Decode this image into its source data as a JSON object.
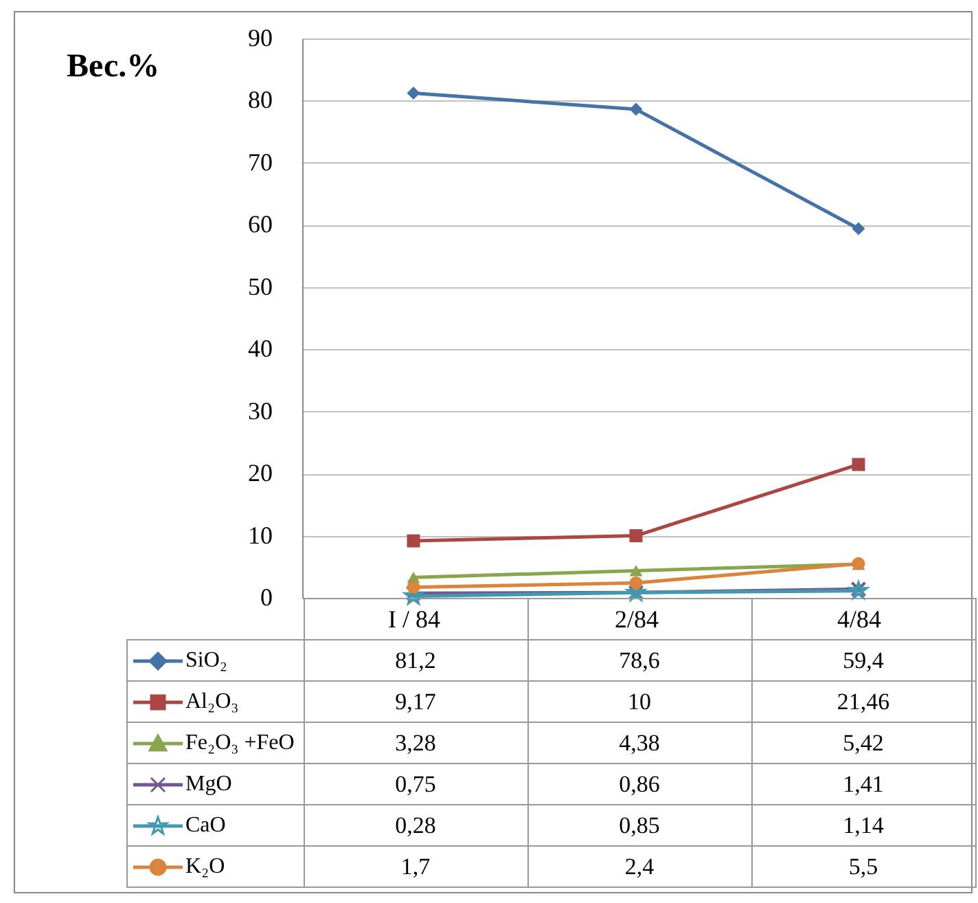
{
  "chart_data": {
    "type": "line",
    "ylabel": "Вес.%",
    "categories": [
      "I / 84",
      "2/84",
      "4/84"
    ],
    "ylim": [
      0,
      90
    ],
    "yticks": [
      0,
      10,
      20,
      30,
      40,
      50,
      60,
      70,
      80,
      90
    ],
    "grid": "y",
    "legend": "bottom",
    "line_style": "solid",
    "series": [
      {
        "name": "SiO₂",
        "color": "#4572a7",
        "marker": "diamond",
        "values": [
          81.2,
          78.6,
          59.4
        ],
        "value_labels": [
          "81,2",
          "78,6",
          "59,4"
        ]
      },
      {
        "name": "Al₂O₃",
        "color": "#aa4643",
        "marker": "square",
        "values": [
          9.17,
          10,
          21.46
        ],
        "value_labels": [
          "9,17",
          "10",
          "21,46"
        ]
      },
      {
        "name": "Fe₂O₃ +FeO",
        "color": "#89a54e",
        "marker": "triangle",
        "values": [
          3.28,
          4.38,
          5.42
        ],
        "value_labels": [
          "3,28",
          "4,38",
          "5,42"
        ]
      },
      {
        "name": "MgO",
        "color": "#71588f",
        "marker": "cross",
        "values": [
          0.75,
          0.86,
          1.41
        ],
        "value_labels": [
          "0,75",
          "0,86",
          "1,41"
        ]
      },
      {
        "name": "CaO",
        "color": "#4198af",
        "marker": "star",
        "values": [
          0.28,
          0.85,
          1.14
        ],
        "value_labels": [
          "0,28",
          "0,85",
          "1,14"
        ]
      },
      {
        "name": "K₂O",
        "color": "#db843d",
        "marker": "circle",
        "values": [
          1.7,
          2.4,
          5.5
        ],
        "value_labels": [
          "1,7",
          "2,4",
          "5,5"
        ]
      }
    ]
  }
}
